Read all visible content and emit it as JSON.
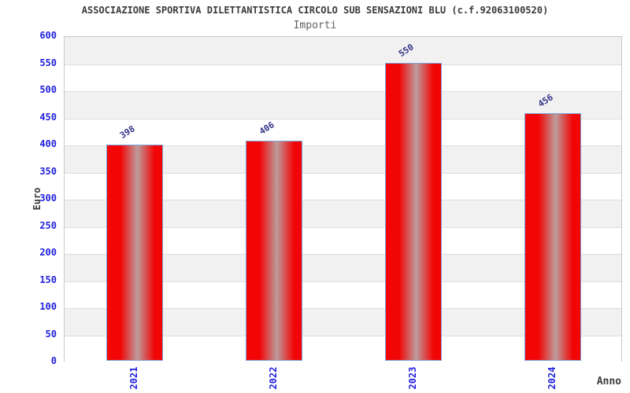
{
  "header": {
    "title": "ASSOCIAZIONE SPORTIVA DILETTANTISTICA CIRCOLO SUB SENSAZIONI BLU (c.f.92063100520)",
    "subtitle": "Importi"
  },
  "chart_data": {
    "type": "bar",
    "title": "ASSOCIAZIONE SPORTIVA DILETTANTISTICA CIRCOLO SUB SENSAZIONI BLU (c.f.92063100520)",
    "subtitle": "Importi",
    "categories": [
      "2021",
      "2022",
      "2023",
      "2024"
    ],
    "values": [
      398,
      406,
      550,
      456
    ],
    "xlabel": "Anno",
    "ylabel": "Euro",
    "ylim": [
      0,
      600
    ],
    "ytick_step": 50,
    "yticks": [
      600,
      550,
      500,
      450,
      400,
      350,
      300,
      250,
      200,
      150,
      100,
      50,
      0
    ],
    "grid": "horizontal-alternating-bands",
    "legend": null,
    "bar_value_labels_rotated": true,
    "x_tick_labels_rotated": true
  },
  "colors": {
    "bar_fill": "#f20505",
    "bar_fill_highlight": "#bd9c9c",
    "bar_border": "#7ba7dc",
    "axis_tick_label": "#2222dd",
    "value_label": "#333388",
    "band_gray": "#f1f1f1",
    "band_white": "#ffffff",
    "grid_line": "#dcdcdc",
    "plot_border": "#c9c9c9",
    "title_color": "#3a3a3a",
    "subtitle_color": "#606060",
    "axis_title_color": "#3a3a3a",
    "background": "#ffffff"
  }
}
